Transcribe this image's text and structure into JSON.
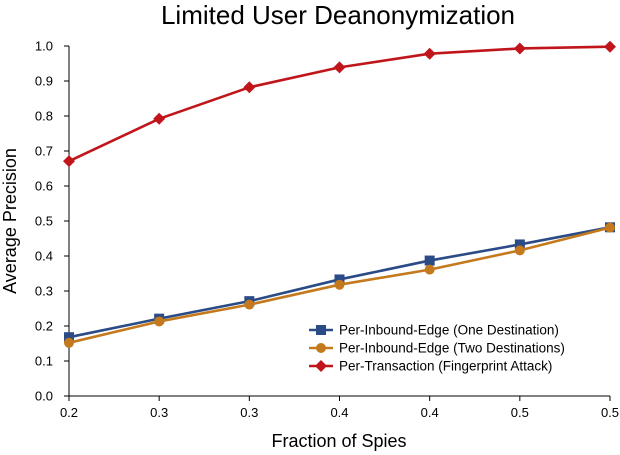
{
  "chart_data": {
    "type": "line",
    "title": "Limited User Deanonymization",
    "xlabel": "Fraction of Spies",
    "ylabel": "Average Precision",
    "categories": [
      "0.2",
      "0.3",
      "0.3",
      "0.4",
      "0.4",
      "0.5",
      "0.5"
    ],
    "ylim": [
      0,
      1.0
    ],
    "yticks": [
      "0.0",
      "0.1",
      "0.2",
      "0.3",
      "0.4",
      "0.5",
      "0.6",
      "0.7",
      "0.8",
      "0.9",
      "1.0"
    ],
    "grid": false,
    "legend_position": "bottom-right",
    "series": [
      {
        "name": "Per-Inbound-Edge (One Destination)",
        "color": "#2a4b86",
        "marker": "square",
        "values": [
          0.168,
          0.221,
          0.271,
          0.333,
          0.387,
          0.433,
          0.482
        ]
      },
      {
        "name": "Per-Inbound-Edge (Two Destinations)",
        "color": "#c47a1c",
        "marker": "circle",
        "values": [
          0.152,
          0.213,
          0.261,
          0.318,
          0.361,
          0.416,
          0.481
        ]
      },
      {
        "name": "Per-Transaction (Fingerprint Attack)",
        "color": "#c0161b",
        "marker": "diamond",
        "values": [
          0.671,
          0.792,
          0.882,
          0.939,
          0.978,
          0.993,
          0.998
        ]
      }
    ]
  }
}
